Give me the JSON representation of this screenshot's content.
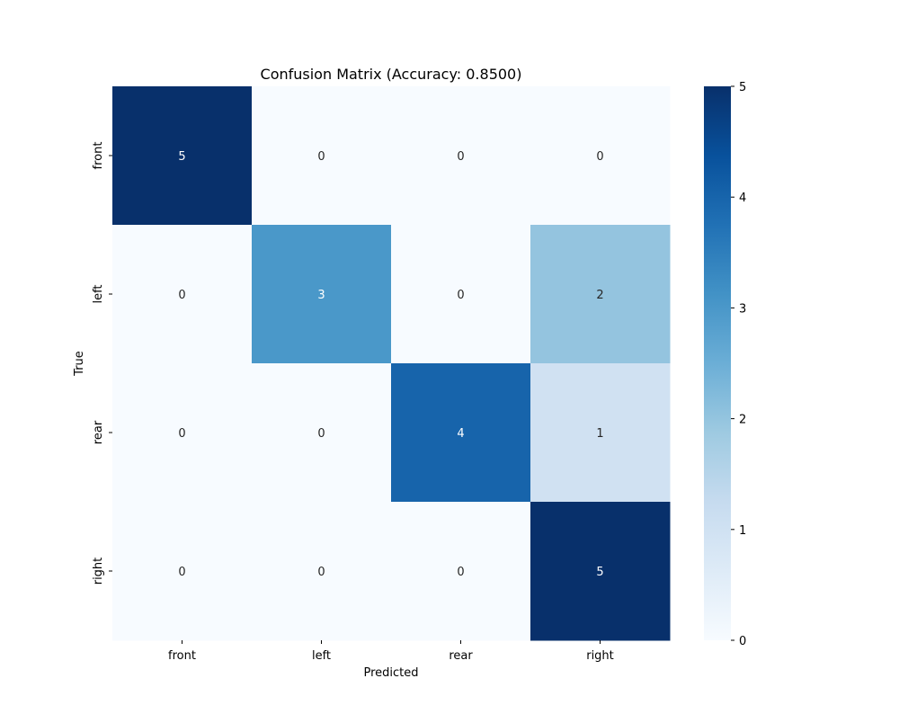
{
  "chart_data": {
    "type": "heatmap",
    "title": "Confusion Matrix (Accuracy: 0.8500)",
    "xlabel": "Predicted",
    "ylabel": "True",
    "x_categories": [
      "front",
      "left",
      "rear",
      "right"
    ],
    "y_categories": [
      "front",
      "left",
      "rear",
      "right"
    ],
    "values": [
      [
        5,
        0,
        0,
        0
      ],
      [
        0,
        3,
        0,
        2
      ],
      [
        0,
        0,
        4,
        1
      ],
      [
        0,
        0,
        0,
        5
      ]
    ],
    "colorbar": {
      "min": 0,
      "max": 5,
      "ticks": [
        0,
        1,
        2,
        3,
        4,
        5
      ],
      "colormap": "Blues"
    },
    "annotations": true,
    "grid": false
  }
}
